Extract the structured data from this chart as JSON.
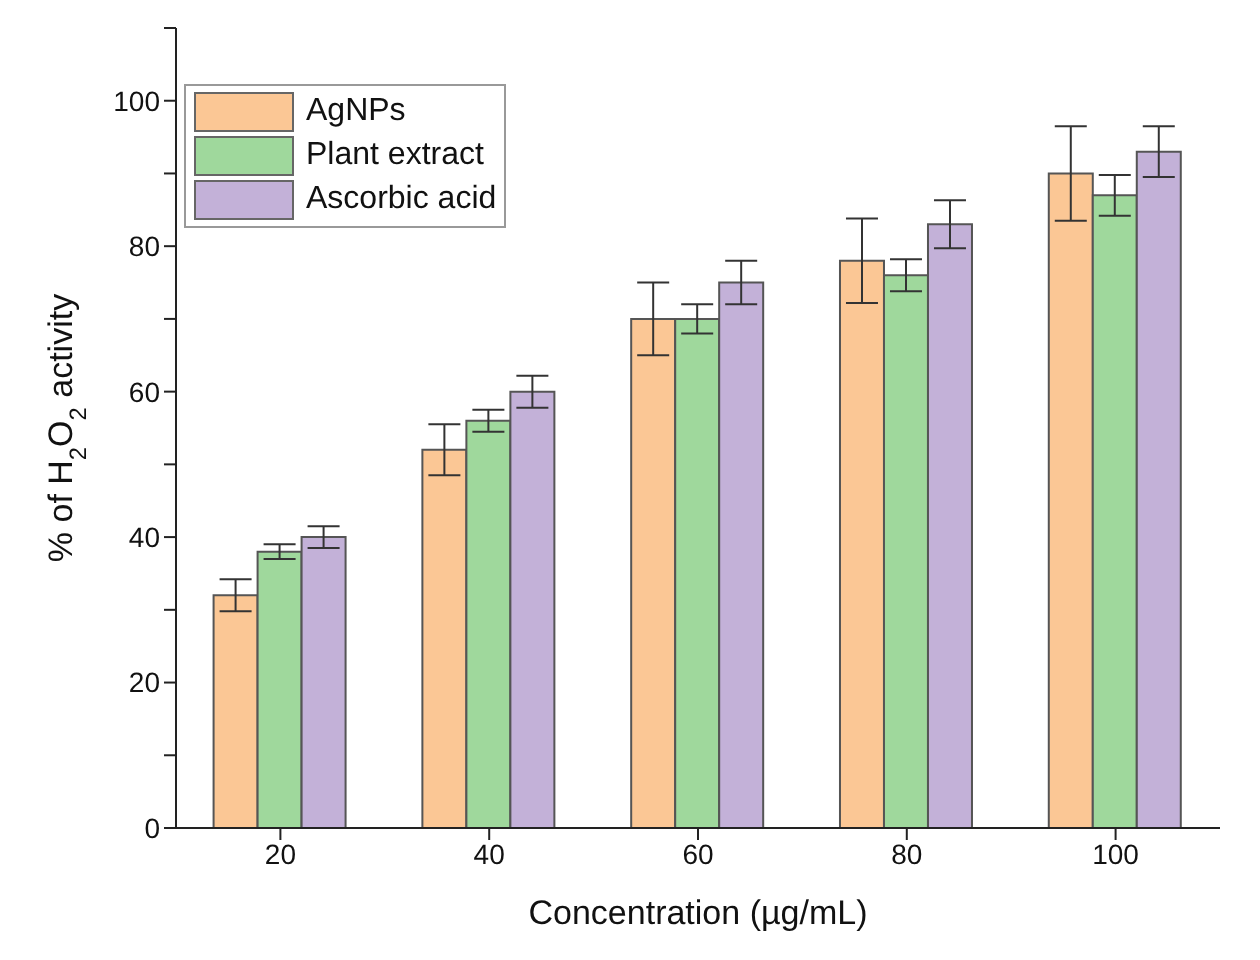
{
  "chart_data": {
    "type": "bar",
    "xlabel": "Concentration (µg/mL)",
    "ylabel": "% of H$_{2}$O$_{2}$ activity",
    "categories": [
      "20",
      "40",
      "60",
      "80",
      "100"
    ],
    "series": [
      {
        "name": "AgNPs",
        "color": "#fbc795",
        "values": [
          32,
          52,
          70,
          78,
          90
        ],
        "errors": [
          2.2,
          3.5,
          5,
          5.8,
          6.5
        ]
      },
      {
        "name": "Plant extract",
        "color": "#9fd89c",
        "values": [
          38,
          56,
          70,
          76,
          87
        ],
        "errors": [
          1,
          1.5,
          2,
          2.2,
          2.8
        ]
      },
      {
        "name": "Ascorbic acid",
        "color": "#c3b1d8",
        "values": [
          40,
          60,
          75,
          83,
          93
        ],
        "errors": [
          1.5,
          2.2,
          3,
          3.3,
          3.5
        ]
      }
    ],
    "ylim": [
      0,
      110
    ],
    "yticks": [
      0,
      {
        "value": 10,
        "label": null
      },
      20,
      {
        "value": 30,
        "label": null
      },
      40,
      {
        "value": 50,
        "label": null
      },
      60,
      {
        "value": 70,
        "label": null
      },
      80,
      {
        "value": 90,
        "label": null
      },
      100,
      {
        "value": 110,
        "label": null
      }
    ],
    "grid": false,
    "legend": "top left"
  }
}
